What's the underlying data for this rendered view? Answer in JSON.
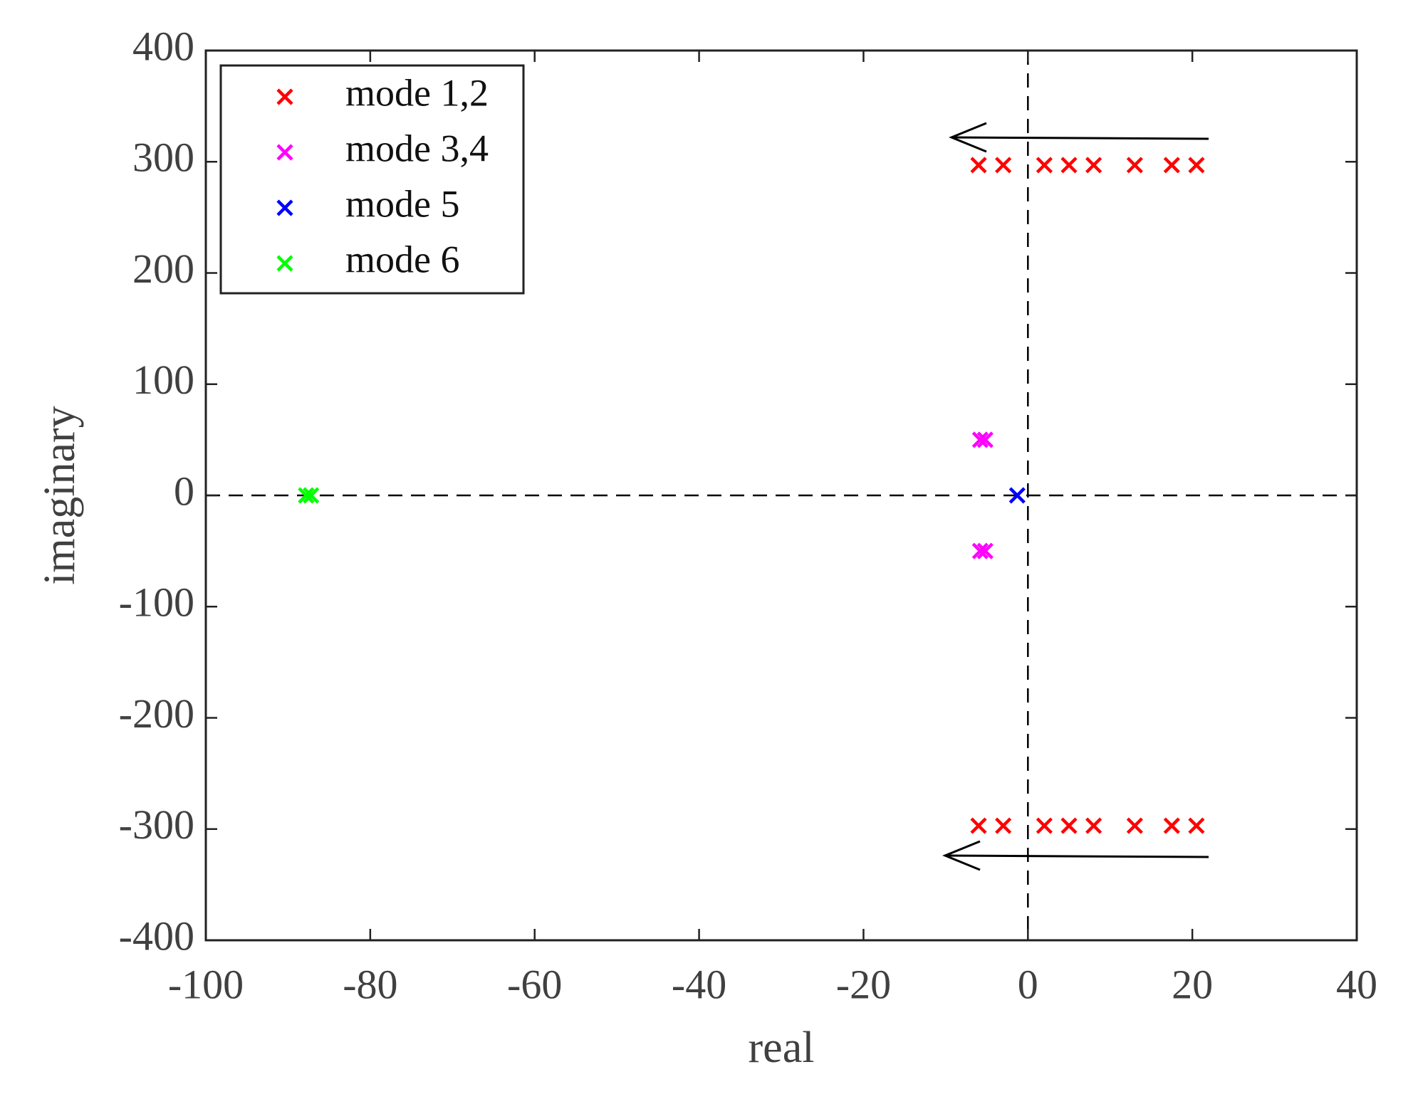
{
  "chart_data": {
    "type": "scatter",
    "x_label": "real",
    "y_label": "imaginary",
    "xlim": [
      -100,
      40
    ],
    "ylim": [
      -400,
      400
    ],
    "xticks": [
      -100,
      -80,
      -60,
      -40,
      -20,
      0,
      20,
      40
    ],
    "yticks": [
      -400,
      -300,
      -200,
      -100,
      0,
      100,
      200,
      300,
      400
    ],
    "legend_position": "upper left",
    "marker": "x",
    "series": [
      {
        "name": "mode 1,2",
        "color": "#ff0000",
        "x": [
          -6,
          -3,
          2,
          5,
          8,
          13,
          17.5,
          20.5,
          -6,
          -3,
          2,
          5,
          8,
          13,
          17.5,
          20.5
        ],
        "values": [
          297,
          297,
          297,
          297,
          297,
          297,
          297,
          297,
          -297,
          -297,
          -297,
          -297,
          -297,
          -297,
          -297,
          -297
        ]
      },
      {
        "name": "mode 3,4",
        "color": "#ff00ff",
        "x": [
          -5.8,
          -5.2,
          -5.8,
          -5.2
        ],
        "values": [
          50,
          50,
          -50,
          -50
        ]
      },
      {
        "name": "mode 5",
        "color": "#0000ff",
        "x": [
          -1.3
        ],
        "values": [
          0
        ]
      },
      {
        "name": "mode 6",
        "color": "#00ff00",
        "x": [
          -87.8,
          -87.2
        ],
        "values": [
          0,
          0
        ]
      }
    ]
  }
}
